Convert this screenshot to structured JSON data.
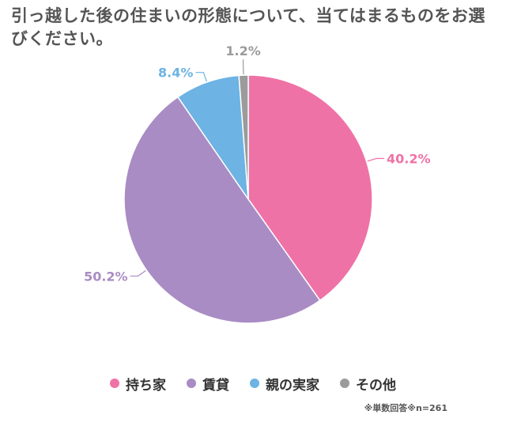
{
  "title": "引っ越した後の住まいの形態について、当てはまるものをお選びください。",
  "footnote": "※単数回答※n=261",
  "chart_data": {
    "type": "pie",
    "legend_position": "bottom",
    "slices": [
      {
        "label": "持ち家",
        "value": 40.2,
        "value_label": "40.2%",
        "color": "#ef72a6"
      },
      {
        "label": "賃貸",
        "value": 50.2,
        "value_label": "50.2%",
        "color": "#a98cc4"
      },
      {
        "label": "親の実家",
        "value": 8.4,
        "value_label": "8.4%",
        "color": "#6db3e3"
      },
      {
        "label": "その他",
        "value": 1.2,
        "value_label": "1.2%",
        "color": "#9b9b9b"
      }
    ]
  }
}
